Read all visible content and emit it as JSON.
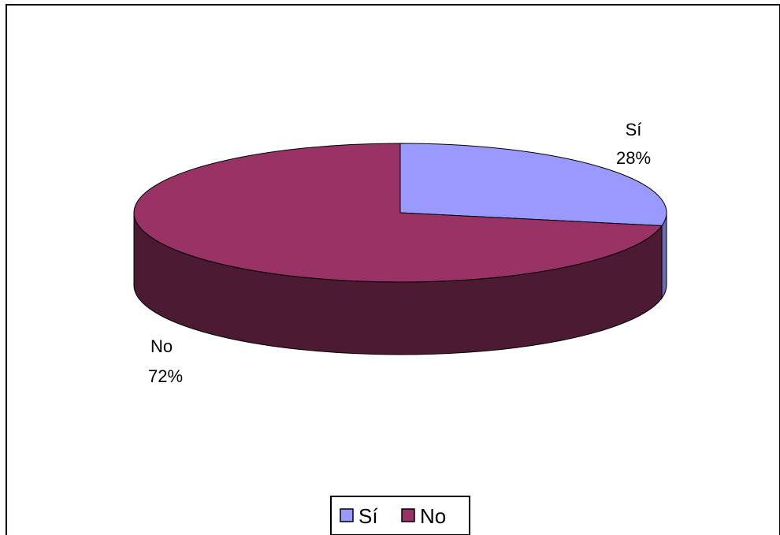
{
  "chart_data": {
    "type": "pie",
    "style": "3d",
    "slices": [
      {
        "label": "Sí",
        "value": 28,
        "value_label": "28%",
        "color": "#9999ff",
        "side_color": "#6b6bb3"
      },
      {
        "label": "No",
        "value": 72,
        "value_label": "72%",
        "color": "#993366",
        "side_color": "#4d1a33"
      }
    ],
    "legend": {
      "placement": "bottom",
      "entries": [
        "Sí",
        "No"
      ]
    }
  }
}
